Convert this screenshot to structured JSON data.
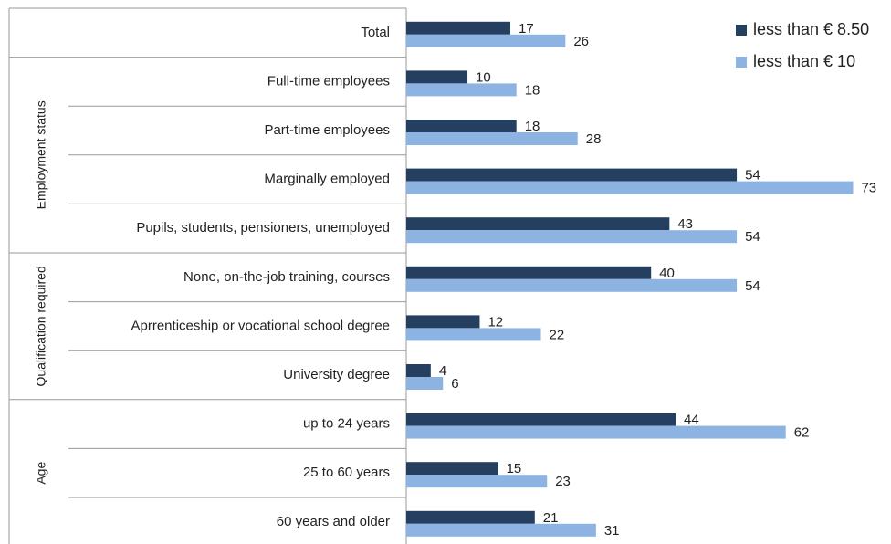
{
  "chart_data": {
    "type": "bar",
    "orientation": "horizontal",
    "categories": [
      "Total",
      "Full-time employees",
      "Part-time employees",
      "Marginally employed",
      "Pupils, students, pensioners, unemployed",
      "None, on-the-job training, courses",
      "Aprrenticeship or vocational school degree",
      "University degree",
      "up to 24 years",
      "25 to 60 years",
      "60 years and older"
    ],
    "groups": [
      {
        "name": "Employment status",
        "start": 1,
        "end": 4
      },
      {
        "name": "Qualification required",
        "start": 5,
        "end": 7
      },
      {
        "name": "Age",
        "start": 8,
        "end": 10
      }
    ],
    "series": [
      {
        "name": "less than € 8.50",
        "color": "#243f60",
        "values": [
          17,
          10,
          18,
          54,
          43,
          40,
          12,
          4,
          44,
          15,
          21
        ]
      },
      {
        "name": "less than € 10",
        "color": "#8db3e2",
        "values": [
          26,
          18,
          28,
          73,
          54,
          54,
          22,
          6,
          62,
          23,
          31
        ]
      }
    ],
    "xlim": [
      0,
      78
    ],
    "legend": "top-right"
  }
}
